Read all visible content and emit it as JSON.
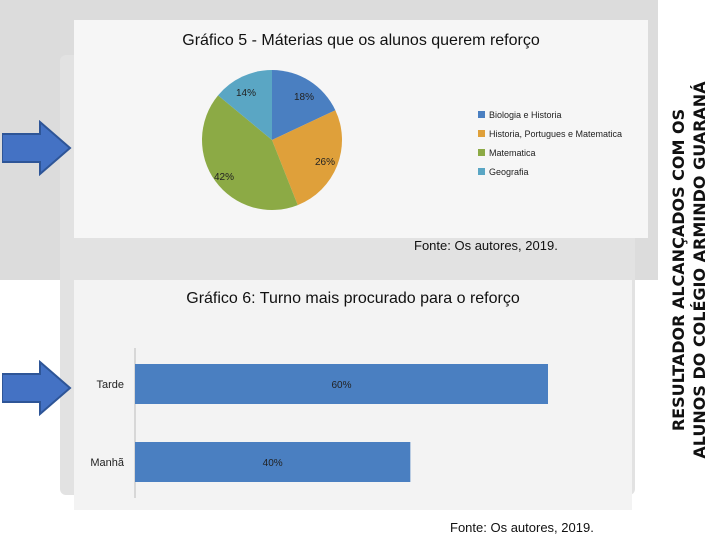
{
  "side_text": {
    "line1": "RESULTADOR ALCANÇADOS COM OS",
    "line2": "ALUNOS DO COLÉGIO ARMINDO GUARANÁ"
  },
  "colors": {
    "arrow": "#4472c4",
    "arrow_stroke": "#2e5597"
  },
  "chart_data": [
    {
      "type": "pie",
      "title": "Gráfico 5 - Máterias que os alunos  querem reforço",
      "slices": [
        {
          "label": "Biologia e Historia",
          "value": 18,
          "display": "18%",
          "color": "#4a7fc1"
        },
        {
          "label": "Historia, Portugues e Matematica",
          "value": 26,
          "display": "26%",
          "color": "#dfa03a"
        },
        {
          "label": "Matematica",
          "value": 42,
          "display": "42%",
          "color": "#8caa45"
        },
        {
          "label": "Geografia",
          "value": 14,
          "display": "14%",
          "color": "#5aa6c4"
        }
      ],
      "legend_position": "right",
      "source": "Fonte: Os autores, 2019."
    },
    {
      "type": "bar",
      "orientation": "horizontal",
      "title": "Gráfico 6: Turno mais procurado para o reforço",
      "categories": [
        "Tarde",
        "Manhã"
      ],
      "values": [
        60,
        40
      ],
      "labels": [
        "60%",
        "40%"
      ],
      "xlim": [
        0,
        60
      ],
      "color": "#4a7fc1",
      "source": "Fonte: Os autores, 2019."
    }
  ]
}
